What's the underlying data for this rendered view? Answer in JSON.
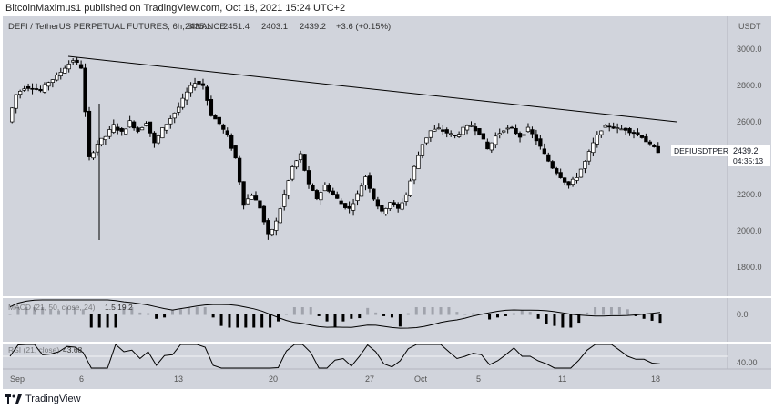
{
  "header": {
    "published": "BitcoinMaximus1 published on TradingView.com, Oct 18, 2021 15:24 UTC+2"
  },
  "symbol_bar": {
    "title": "DEFI / TetherUS PERPETUAL FUTURES, 6h, BINANCE",
    "o": "2435.1",
    "h": "2451.4",
    "l": "2403.1",
    "c": "2439.2",
    "change": "+3.6 (+0.15%)"
  },
  "price_axis": {
    "currency": "USDT",
    "ticks": [
      "3000.0",
      "2800.0",
      "2600.0",
      "2400.0",
      "2200.0",
      "2000.0",
      "1800.0"
    ],
    "ticker": "DEFIUSDTPERP",
    "last_price": "2439.2",
    "countdown": "04:35:13"
  },
  "macd": {
    "label": "MACD (21, 50, close, 24)",
    "values": "1.5  19.2",
    "axis_tick": "0.0"
  },
  "rsi": {
    "label": "RSI (21, close)",
    "value": "43.68",
    "axis_tick": "40.00"
  },
  "time_axis": {
    "ticks": [
      "Sep",
      "6",
      "13",
      "20",
      "27",
      "Oct",
      "5",
      "11",
      "18"
    ]
  },
  "footer": {
    "brand": "TradingView"
  },
  "colors": {
    "background": "#d1d4dc",
    "candle": "#000000",
    "trendline": "#000000",
    "macd_pos": "#a0a3ac",
    "macd_neg": "#000000"
  },
  "chart_data": [
    {
      "type": "candlestick",
      "title": "DEFI / TetherUS PERPETUAL FUTURES, 6h, BINANCE",
      "ylabel": "USDT",
      "ylim": [
        1700,
        3100
      ],
      "x": [
        "Sep",
        "6",
        "13",
        "20",
        "27",
        "Oct",
        "5",
        "11",
        "18"
      ],
      "close_path": [
        2600,
        2750,
        2790,
        2790,
        2770,
        2820,
        2850,
        2900,
        2940,
        2900,
        2400,
        2480,
        2520,
        2580,
        2540,
        2600,
        2550,
        2600,
        2480,
        2560,
        2620,
        2680,
        2760,
        2820,
        2800,
        2640,
        2590,
        2520,
        2400,
        2150,
        2200,
        2130,
        1970,
        2050,
        2200,
        2350,
        2420,
        2250,
        2180,
        2250,
        2200,
        2150,
        2120,
        2200,
        2300,
        2180,
        2100,
        2160,
        2120,
        2200,
        2350,
        2480,
        2550,
        2560,
        2540,
        2520,
        2560,
        2580,
        2540,
        2450,
        2520,
        2560,
        2560,
        2520,
        2560,
        2500,
        2420,
        2350,
        2300,
        2250,
        2300,
        2380,
        2480,
        2560,
        2580,
        2560,
        2560,
        2540,
        2520,
        2470,
        2439.2
      ],
      "trendline": [
        {
          "date": "Sep 5",
          "value": 2960
        },
        {
          "date": "Oct 19",
          "value": 2600
        }
      ],
      "last": 2439.2
    },
    {
      "type": "line",
      "name": "MACD (21, 50, close, 24)",
      "last": [
        1.5,
        19.2
      ],
      "axis_tick": "0.0"
    },
    {
      "type": "line",
      "name": "RSI (21, close)",
      "last": 43.68,
      "axis_tick": "40.00"
    }
  ]
}
